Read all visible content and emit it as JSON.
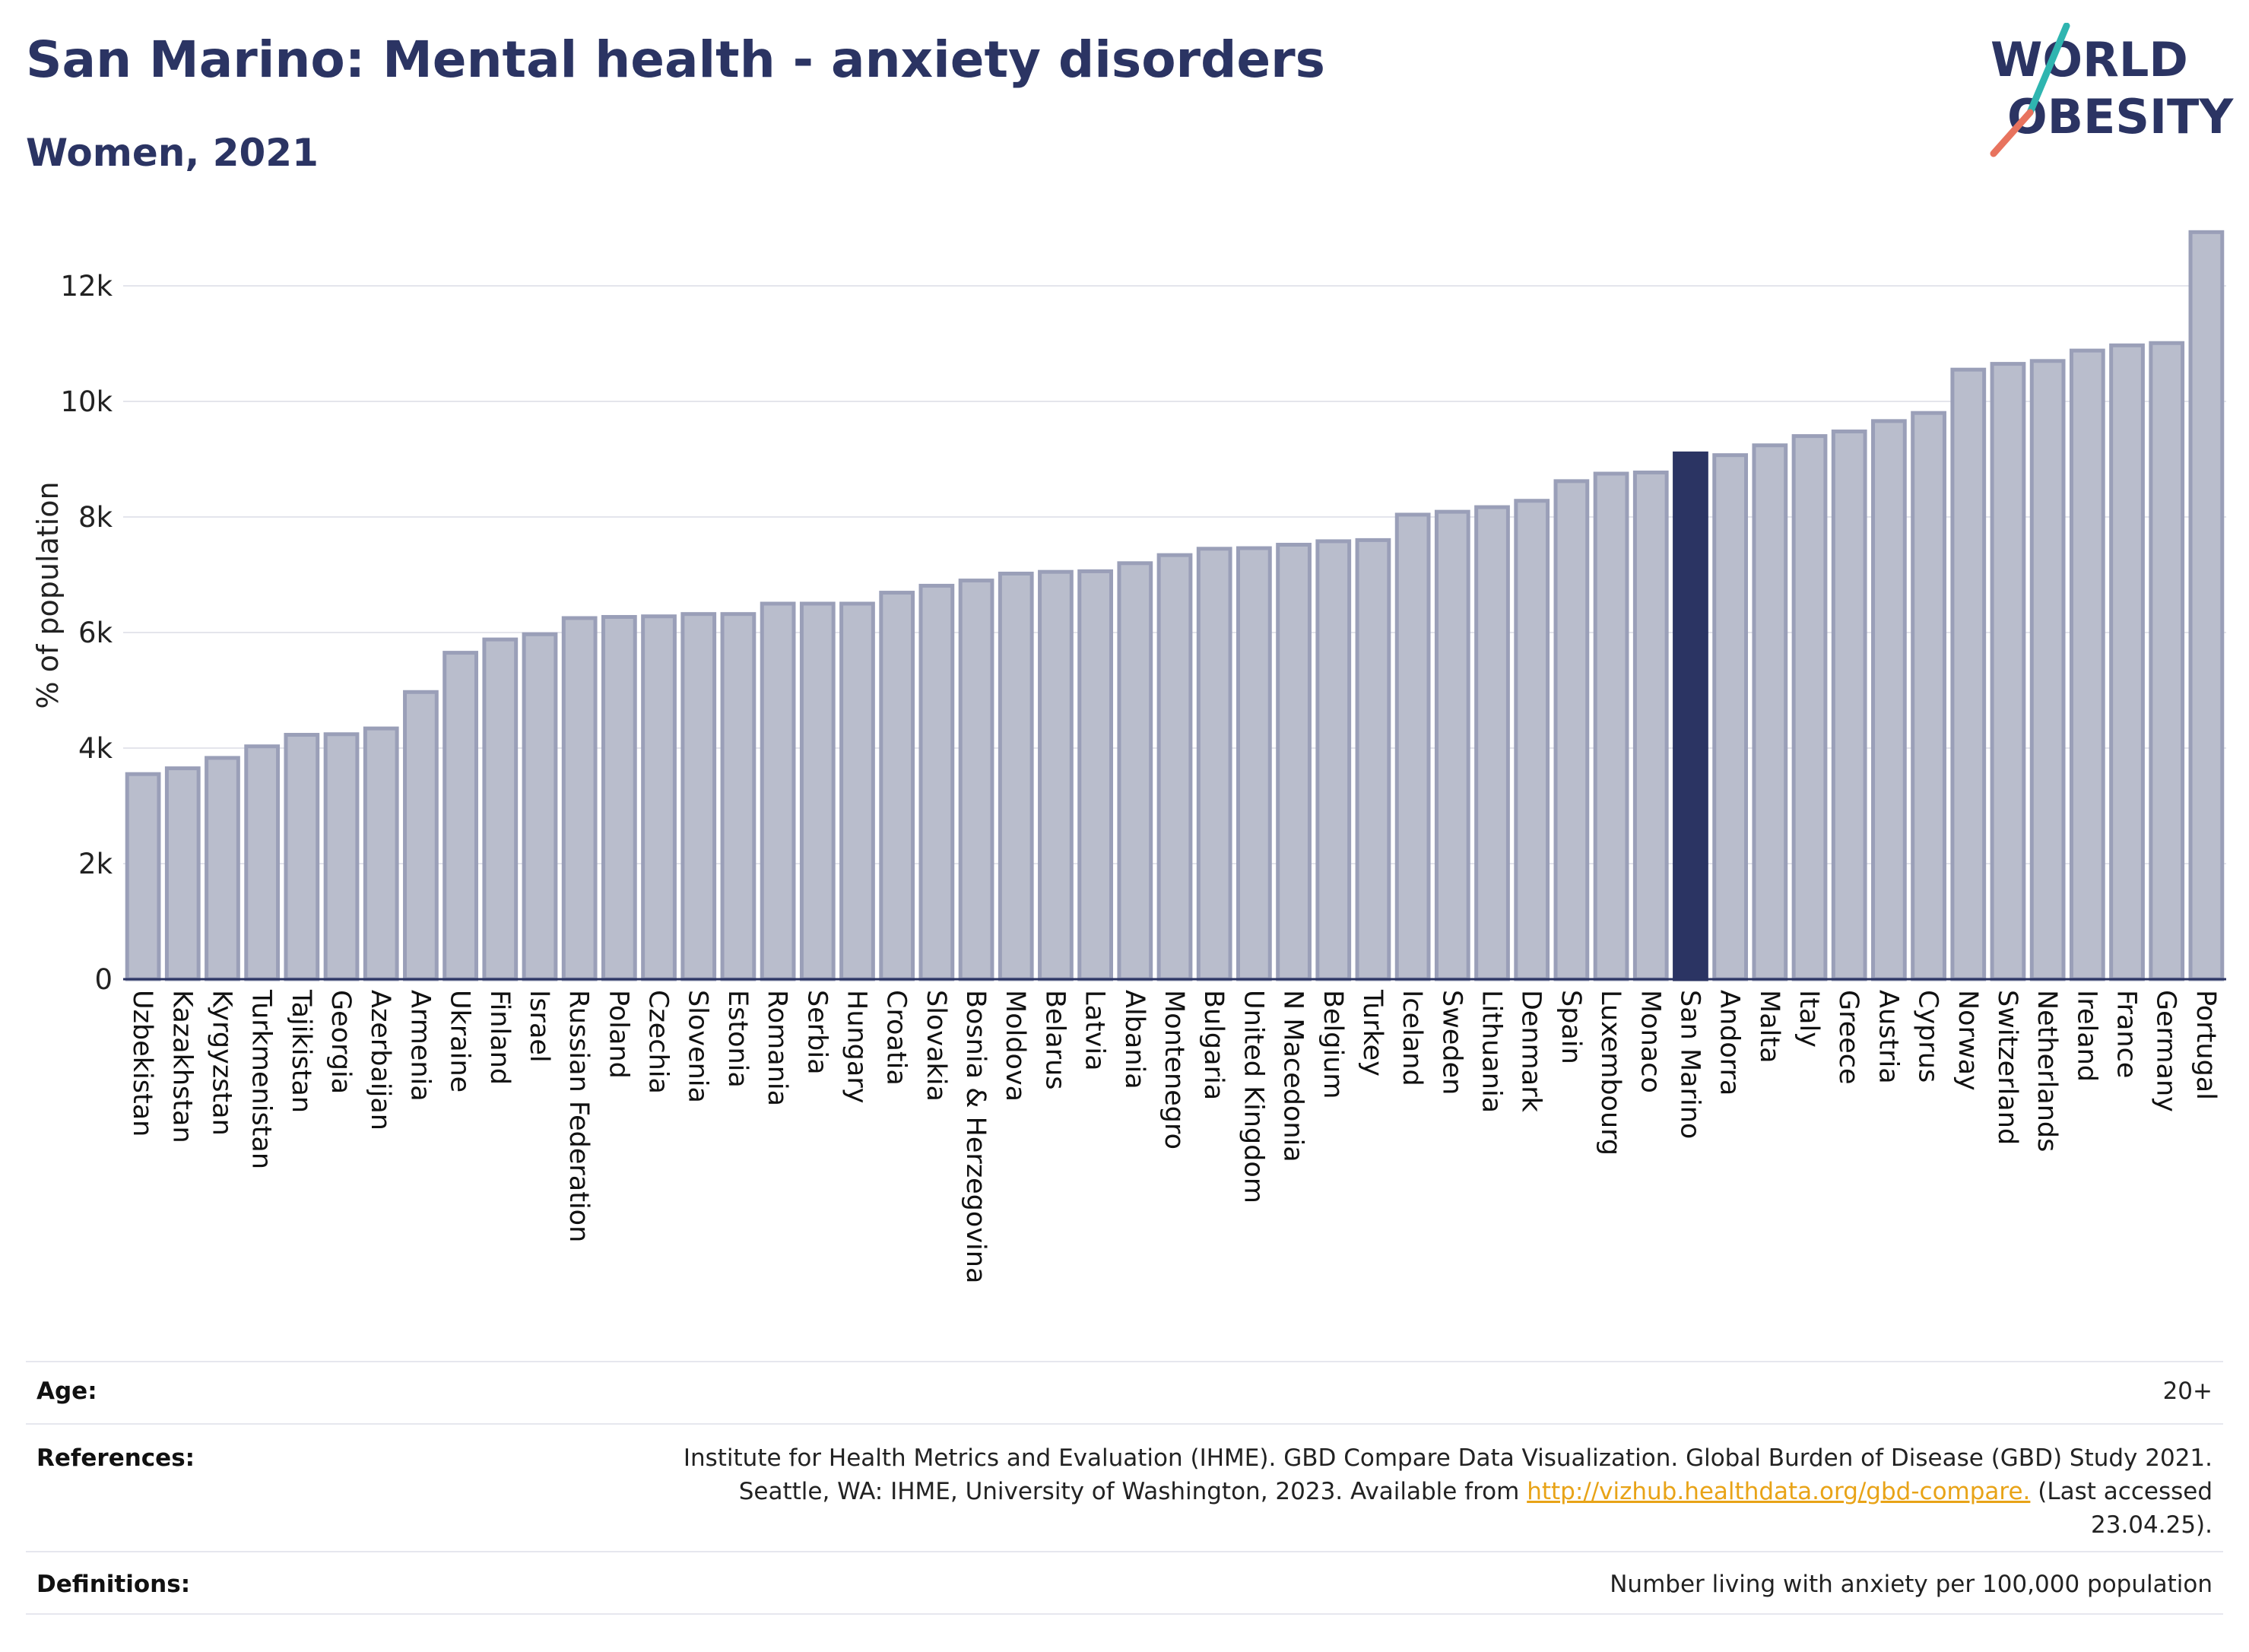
{
  "header": {
    "title": "San Marino: Mental health - anxiety disorders",
    "subtitle": "Women, 2021"
  },
  "logo": {
    "line1": "WORLD",
    "line2": "OBESITY"
  },
  "colors": {
    "brand": "#2b3463",
    "bar": "#b9bdcc",
    "bar_stroke": "#9a9fb8",
    "highlight": "#2b3463",
    "logo_teal": "#2fb5b0",
    "logo_coral": "#e8735e",
    "link": "#e8a317"
  },
  "chart_data": {
    "type": "bar",
    "ylabel": "% of population",
    "ylim": [
      0,
      13000
    ],
    "yticks": [
      0,
      2000,
      4000,
      6000,
      8000,
      10000,
      12000
    ],
    "ytick_labels": [
      "0",
      "2k",
      "4k",
      "6k",
      "8k",
      "10k",
      "12k"
    ],
    "grid": true,
    "highlight": "San Marino",
    "categories": [
      "Uzbekistan",
      "Kazakhstan",
      "Kyrgyzstan",
      "Turkmenistan",
      "Tajikistan",
      "Georgia",
      "Azerbaijan",
      "Armenia",
      "Ukraine",
      "Finland",
      "Israel",
      "Russian Federation",
      "Poland",
      "Czechia",
      "Slovenia",
      "Estonia",
      "Romania",
      "Serbia",
      "Hungary",
      "Croatia",
      "Slovakia",
      "Bosnia & Herzegovina",
      "Moldova",
      "Belarus",
      "Latvia",
      "Albania",
      "Montenegro",
      "Bulgaria",
      "United Kingdom",
      "N Macedonia",
      "Belgium",
      "Turkey",
      "Iceland",
      "Sweden",
      "Lithuania",
      "Denmark",
      "Spain",
      "Luxembourg",
      "Monaco",
      "San Marino",
      "Andorra",
      "Malta",
      "Italy",
      "Greece",
      "Austria",
      "Cyprus",
      "Norway",
      "Switzerland",
      "Netherlands",
      "Ireland",
      "France",
      "Germany",
      "Portugal"
    ],
    "values": [
      3550,
      3650,
      3830,
      4030,
      4230,
      4240,
      4340,
      4970,
      5650,
      5880,
      5970,
      6250,
      6270,
      6280,
      6320,
      6320,
      6500,
      6500,
      6500,
      6690,
      6810,
      6900,
      7020,
      7050,
      7060,
      7200,
      7340,
      7450,
      7460,
      7520,
      7580,
      7600,
      8040,
      8090,
      8170,
      8280,
      8620,
      8750,
      8770,
      9100,
      9070,
      9240,
      9400,
      9480,
      9660,
      9800,
      10550,
      10650,
      10700,
      10880,
      10970,
      11010,
      12930
    ]
  },
  "info": {
    "age_label": "Age:",
    "age_value": "20+",
    "references_label": "References:",
    "references_line1": "Institute for Health Metrics and Evaluation (IHME). GBD Compare Data Visualization. Global Burden of Disease (GBD) Study 2021.",
    "references_line2_pre": "Seattle, WA: IHME, University of Washington, 2023. Available from",
    "references_link": "http://vizhub.healthdata.org/gbd-compare.",
    "references_line2_post": "(Last accessed",
    "references_line3": "23.04.25).",
    "definitions_label": "Definitions:",
    "definitions_value": "Number living with anxiety per 100,000 population"
  }
}
